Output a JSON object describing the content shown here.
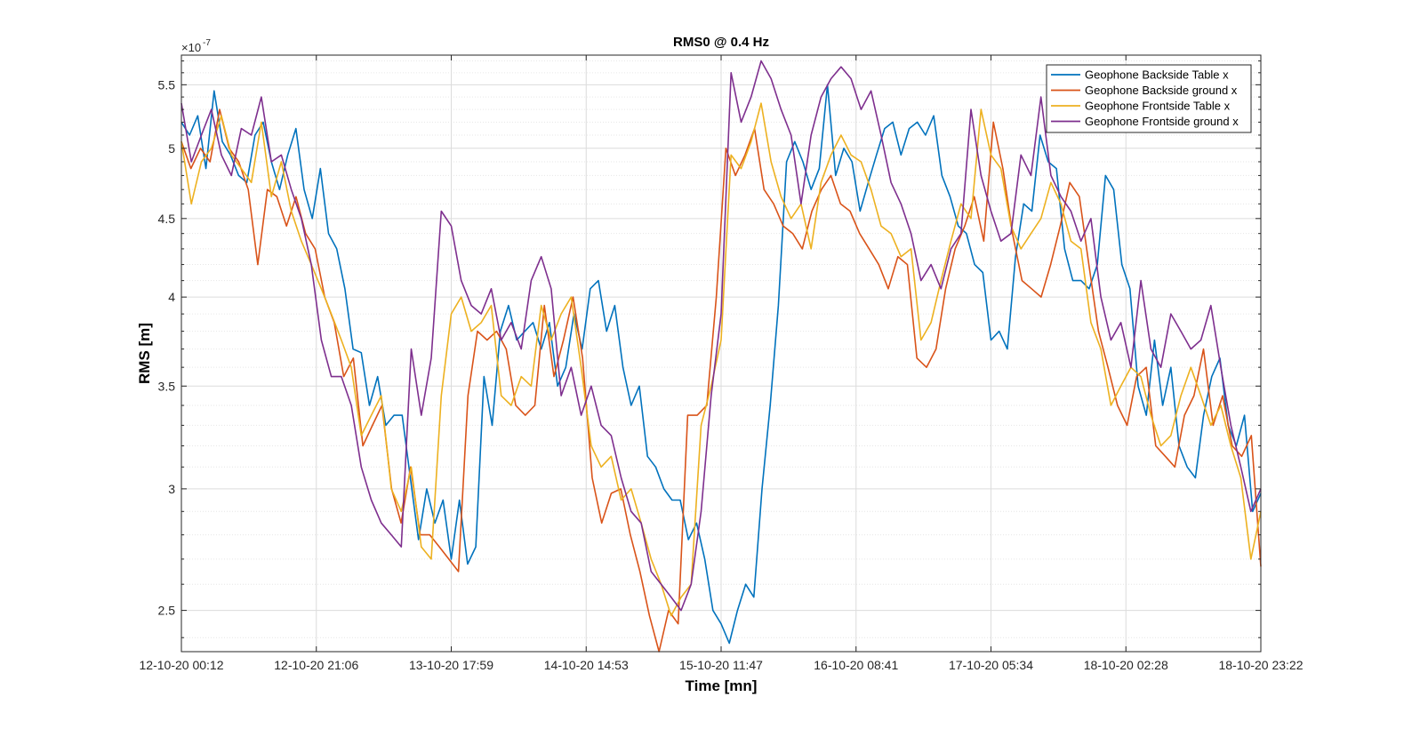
{
  "chart_data": {
    "type": "line",
    "title": "RMS0 @ 0.4 Hz",
    "xlabel": "Time [mn]",
    "ylabel": "RMS [m]",
    "y_exponent_label": "×10",
    "y_exponent_power": "-7",
    "y_scale": "log",
    "ylim": [
      2.35,
      5.75
    ],
    "grid": true,
    "minor_grid": true,
    "legend_position": "top-right",
    "x_ticks": [
      "12-10-20 00:12",
      "12-10-20 21:06",
      "13-10-20 17:59",
      "14-10-20 14:53",
      "15-10-20 11:47",
      "16-10-20 08:41",
      "17-10-20 05:34",
      "18-10-20 02:28",
      "18-10-20 23:22"
    ],
    "y_ticks": [
      {
        "value": 2.5,
        "label": "2.5"
      },
      {
        "value": 3.0,
        "label": "3"
      },
      {
        "value": 3.5,
        "label": "3.5"
      },
      {
        "value": 4.0,
        "label": "4"
      },
      {
        "value": 4.5,
        "label": "4.5"
      },
      {
        "value": 5.0,
        "label": "5"
      },
      {
        "value": 5.5,
        "label": "5.5"
      }
    ],
    "y_minor_ticks": [
      2.4,
      2.6,
      2.7,
      2.8,
      2.9,
      3.1,
      3.2,
      3.3,
      3.4,
      3.6,
      3.7,
      3.8,
      3.9,
      4.1,
      4.2,
      4.3,
      4.4,
      4.6,
      4.7,
      4.8,
      4.9,
      5.1,
      5.2,
      5.3,
      5.4,
      5.6,
      5.7
    ],
    "series": [
      {
        "name": "Geophone Backside Table x",
        "color": "#0072BD",
        "values": [
          5.2,
          5.1,
          5.25,
          4.85,
          5.45,
          5.05,
          4.95,
          4.8,
          4.75,
          5.1,
          5.2,
          4.9,
          4.7,
          4.95,
          5.15,
          4.7,
          4.5,
          4.85,
          4.4,
          4.3,
          4.05,
          3.7,
          3.68,
          3.4,
          3.55,
          3.3,
          3.35,
          3.35,
          3.05,
          2.78,
          3.0,
          2.85,
          2.95,
          2.7,
          2.95,
          2.68,
          2.75,
          3.55,
          3.3,
          3.8,
          3.95,
          3.75,
          3.8,
          3.85,
          3.7,
          3.85,
          3.5,
          3.6,
          3.9,
          3.7,
          4.05,
          4.1,
          3.8,
          3.95,
          3.6,
          3.4,
          3.5,
          3.15,
          3.1,
          3.0,
          2.95,
          2.95,
          2.78,
          2.85,
          2.7,
          2.5,
          2.45,
          2.38,
          2.5,
          2.6,
          2.55,
          3.0,
          3.4,
          3.95,
          4.9,
          5.05,
          4.9,
          4.7,
          4.85,
          5.5,
          4.8,
          5.0,
          4.9,
          4.55,
          4.75,
          4.95,
          5.15,
          5.2,
          4.95,
          5.15,
          5.2,
          5.1,
          5.25,
          4.8,
          4.65,
          4.45,
          4.4,
          4.2,
          4.15,
          3.75,
          3.8,
          3.7,
          4.25,
          4.6,
          4.55,
          5.1,
          4.9,
          4.85,
          4.3,
          4.1,
          4.1,
          4.05,
          4.2,
          4.8,
          4.7,
          4.2,
          4.05,
          3.5,
          3.35,
          3.75,
          3.4,
          3.6,
          3.2,
          3.1,
          3.05,
          3.35,
          3.55,
          3.65,
          3.3,
          3.2,
          3.35,
          2.9,
          2.98
        ]
      },
      {
        "name": "Geophone Backside ground x",
        "color": "#D95319",
        "values": [
          5.05,
          4.85,
          5.0,
          4.9,
          5.3,
          5.0,
          4.9,
          4.7,
          4.2,
          4.7,
          4.65,
          4.45,
          4.65,
          4.4,
          4.3,
          4.0,
          3.85,
          3.55,
          3.65,
          3.2,
          3.3,
          3.4,
          3.0,
          2.85,
          3.1,
          2.8,
          2.8,
          2.75,
          2.7,
          2.65,
          3.45,
          3.8,
          3.75,
          3.8,
          3.7,
          3.4,
          3.35,
          3.4,
          3.95,
          3.55,
          3.75,
          4.0,
          3.65,
          3.05,
          2.85,
          2.98,
          3.0,
          2.8,
          2.65,
          2.48,
          2.35,
          2.5,
          2.45,
          3.35,
          3.35,
          3.4,
          4.0,
          5.0,
          4.8,
          4.95,
          5.15,
          4.7,
          4.6,
          4.45,
          4.4,
          4.3,
          4.55,
          4.7,
          4.8,
          4.6,
          4.55,
          4.4,
          4.3,
          4.2,
          4.05,
          4.25,
          4.2,
          3.65,
          3.6,
          3.7,
          4.05,
          4.3,
          4.45,
          4.65,
          4.35,
          5.2,
          4.85,
          4.4,
          4.1,
          4.05,
          4.0,
          4.2,
          4.45,
          4.75,
          4.65,
          4.2,
          3.8,
          3.6,
          3.4,
          3.3,
          3.55,
          3.6,
          3.2,
          3.15,
          3.1,
          3.35,
          3.45,
          3.7,
          3.3,
          3.45,
          3.2,
          3.15,
          3.25,
          2.67
        ]
      },
      {
        "name": "Geophone Frontside Table x",
        "color": "#EDB120",
        "values": [
          5.05,
          4.6,
          4.9,
          5.0,
          5.25,
          4.95,
          4.85,
          4.75,
          5.2,
          4.65,
          4.9,
          4.55,
          4.35,
          4.2,
          4.05,
          3.9,
          3.75,
          3.6,
          3.25,
          3.35,
          3.45,
          3.0,
          2.9,
          3.1,
          2.75,
          2.7,
          3.45,
          3.9,
          4.0,
          3.8,
          3.85,
          3.95,
          3.45,
          3.4,
          3.55,
          3.5,
          3.95,
          3.75,
          3.9,
          4.0,
          3.6,
          3.2,
          3.1,
          3.15,
          2.95,
          3.0,
          2.85,
          2.7,
          2.6,
          2.48,
          2.55,
          2.6,
          3.3,
          3.5,
          3.75,
          4.95,
          4.85,
          5.05,
          5.35,
          4.9,
          4.65,
          4.5,
          4.6,
          4.3,
          4.75,
          4.95,
          5.1,
          4.95,
          4.9,
          4.7,
          4.45,
          4.4,
          4.25,
          4.3,
          3.75,
          3.85,
          4.1,
          4.35,
          4.6,
          4.5,
          5.3,
          4.95,
          4.85,
          4.45,
          4.3,
          4.4,
          4.5,
          4.75,
          4.6,
          4.35,
          4.3,
          3.85,
          3.7,
          3.4,
          3.5,
          3.6,
          3.55,
          3.35,
          3.2,
          3.25,
          3.45,
          3.6,
          3.45,
          3.3,
          3.4,
          3.2,
          3.05,
          2.7,
          2.9
        ]
      },
      {
        "name": "Geophone Frontside ground x",
        "color": "#7E2F8E",
        "values": [
          5.35,
          4.9,
          5.1,
          5.3,
          4.95,
          4.8,
          5.15,
          5.1,
          5.4,
          4.9,
          4.95,
          4.7,
          4.5,
          4.2,
          3.75,
          3.55,
          3.55,
          3.4,
          3.1,
          2.95,
          2.85,
          2.8,
          2.75,
          3.7,
          3.35,
          3.65,
          4.55,
          4.45,
          4.1,
          3.95,
          3.9,
          4.05,
          3.75,
          3.85,
          3.7,
          4.1,
          4.25,
          4.05,
          3.45,
          3.6,
          3.35,
          3.5,
          3.3,
          3.25,
          3.05,
          2.9,
          2.85,
          2.65,
          2.6,
          2.55,
          2.5,
          2.6,
          2.9,
          3.45,
          3.9,
          5.6,
          5.2,
          5.4,
          5.7,
          5.55,
          5.3,
          5.1,
          4.6,
          5.1,
          5.4,
          5.55,
          5.65,
          5.55,
          5.3,
          5.45,
          5.1,
          4.75,
          4.6,
          4.4,
          4.1,
          4.2,
          4.05,
          4.3,
          4.4,
          5.3,
          4.8,
          4.55,
          4.35,
          4.4,
          4.95,
          4.8,
          5.4,
          4.8,
          4.65,
          4.55,
          4.35,
          4.5,
          4.0,
          3.75,
          3.85,
          3.6,
          4.1,
          3.7,
          3.6,
          3.9,
          3.8,
          3.7,
          3.75,
          3.95,
          3.6,
          3.3,
          3.1,
          2.9,
          3.0
        ]
      }
    ]
  }
}
